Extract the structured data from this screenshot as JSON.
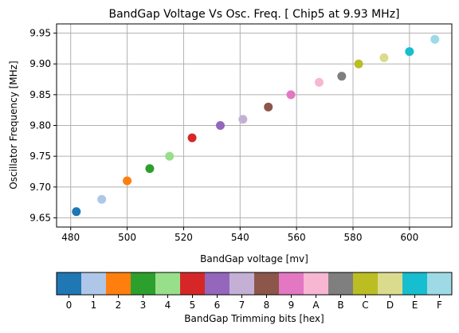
{
  "chart_data": [
    {
      "type": "scatter",
      "title": "BandGap Voltage Vs Osc. Freq. [ Chip5 at 9.93 MHz]",
      "xlabel": "BandGap voltage [mv]",
      "ylabel": "Oscillator Frequency [MHz]",
      "xlim": [
        475,
        615
      ],
      "ylim": [
        9.635,
        9.965
      ],
      "xticks": [
        480,
        500,
        520,
        540,
        560,
        580,
        600
      ],
      "yticks": [
        9.65,
        9.7,
        9.75,
        9.8,
        9.85,
        9.9,
        9.95
      ],
      "xtick_labels": [
        "480",
        "500",
        "520",
        "540",
        "560",
        "580",
        "600"
      ],
      "ytick_labels": [
        "9.65",
        "9.70",
        "9.75",
        "9.80",
        "9.85",
        "9.90",
        "9.95"
      ],
      "grid": true,
      "points": [
        {
          "x": 482,
          "y": 9.66,
          "color": "#1f77b4"
        },
        {
          "x": 491,
          "y": 9.68,
          "color": "#aec7e8"
        },
        {
          "x": 500,
          "y": 9.71,
          "color": "#ff7f0e"
        },
        {
          "x": 508,
          "y": 9.73,
          "color": "#2ca02c"
        },
        {
          "x": 515,
          "y": 9.75,
          "color": "#98df8a"
        },
        {
          "x": 523,
          "y": 9.78,
          "color": "#d62728"
        },
        {
          "x": 533,
          "y": 9.8,
          "color": "#9467bd"
        },
        {
          "x": 541,
          "y": 9.81,
          "color": "#c5b0d5"
        },
        {
          "x": 550,
          "y": 9.83,
          "color": "#8c564b"
        },
        {
          "x": 558,
          "y": 9.85,
          "color": "#e377c2"
        },
        {
          "x": 568,
          "y": 9.87,
          "color": "#f7b6d2"
        },
        {
          "x": 576,
          "y": 9.88,
          "color": "#7f7f7f"
        },
        {
          "x": 582,
          "y": 9.9,
          "color": "#bcbd22"
        },
        {
          "x": 591,
          "y": 9.91,
          "color": "#dbdb8d"
        },
        {
          "x": 600,
          "y": 9.92,
          "color": "#17becf"
        },
        {
          "x": 609,
          "y": 9.94,
          "color": "#9edae5"
        }
      ]
    },
    {
      "type": "colorbar",
      "xlabel": "BandGap Trimming bits [hex]",
      "categories": [
        "0",
        "1",
        "2",
        "3",
        "4",
        "5",
        "6",
        "7",
        "8",
        "9",
        "A",
        "B",
        "C",
        "D",
        "E",
        "F"
      ],
      "colors": [
        "#1f77b4",
        "#aec7e8",
        "#ff7f0e",
        "#2ca02c",
        "#98df8a",
        "#d62728",
        "#9467bd",
        "#c5b0d5",
        "#8c564b",
        "#e377c2",
        "#f7b6d2",
        "#7f7f7f",
        "#bcbd22",
        "#dbdb8d",
        "#17becf",
        "#9edae5"
      ]
    }
  ]
}
